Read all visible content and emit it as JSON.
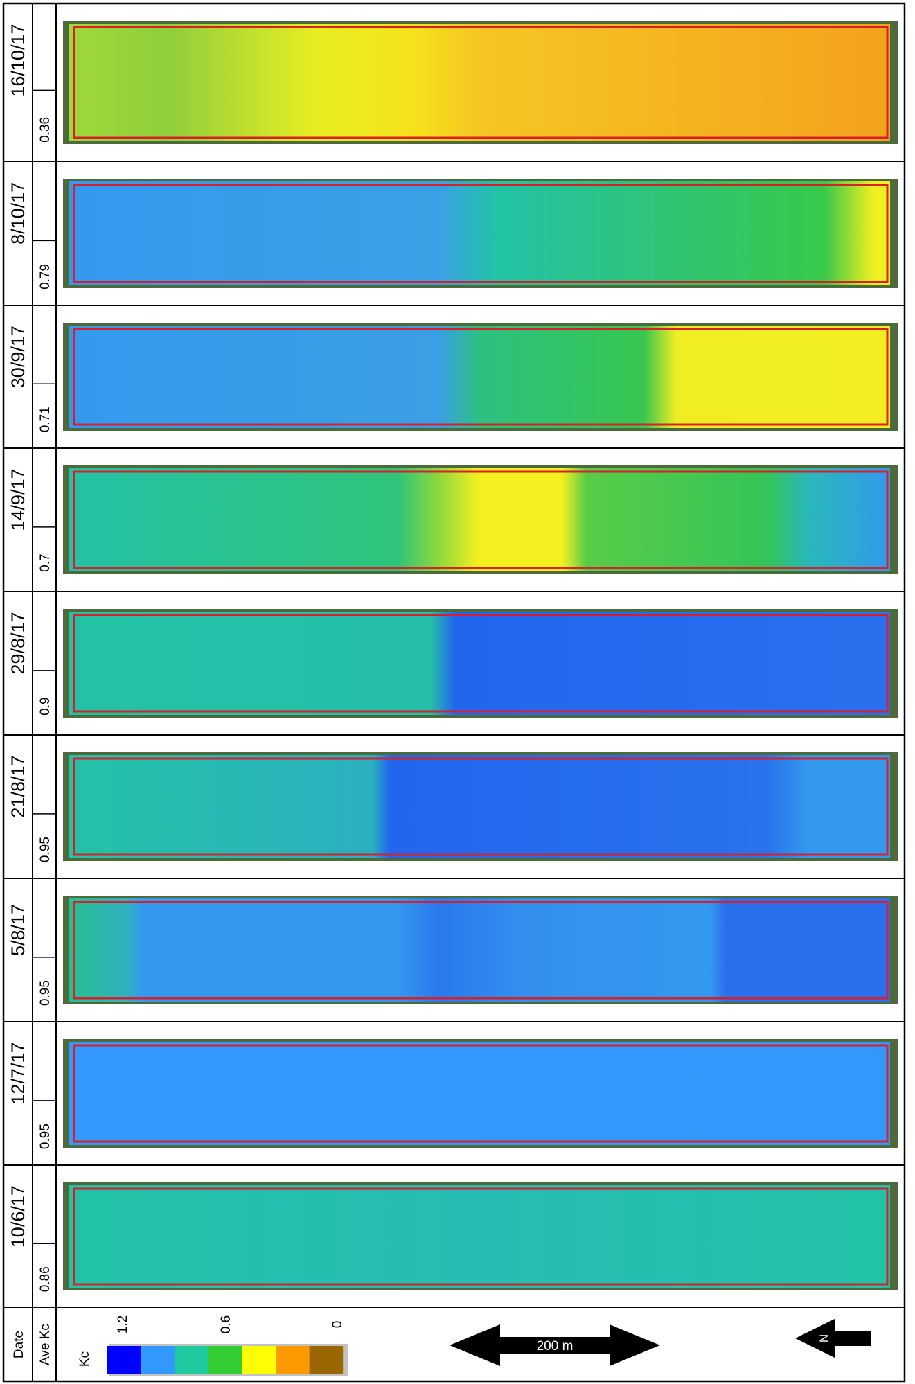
{
  "rows": [
    {
      "date": "16/10/17",
      "ave_kc": "0.36"
    },
    {
      "date": "8/10/17",
      "ave_kc": "0.79"
    },
    {
      "date": "30/9/17",
      "ave_kc": "0.71"
    },
    {
      "date": "14/9/17",
      "ave_kc": "0.7"
    },
    {
      "date": "29/8/17",
      "ave_kc": "0.9"
    },
    {
      "date": "21/8/17",
      "ave_kc": "0.95"
    },
    {
      "date": "5/8/17",
      "ave_kc": "0.95"
    },
    {
      "date": "12/7/17",
      "ave_kc": "0.95"
    },
    {
      "date": "10/6/17",
      "ave_kc": "0.86"
    }
  ],
  "footer": {
    "date_header": "Date",
    "kc_header": "Ave Kc",
    "legend_title": "Kc",
    "legend_ticks": [
      "1.2",
      "0.6",
      "0"
    ],
    "scale_label": "200 m",
    "north_label": "N"
  }
}
